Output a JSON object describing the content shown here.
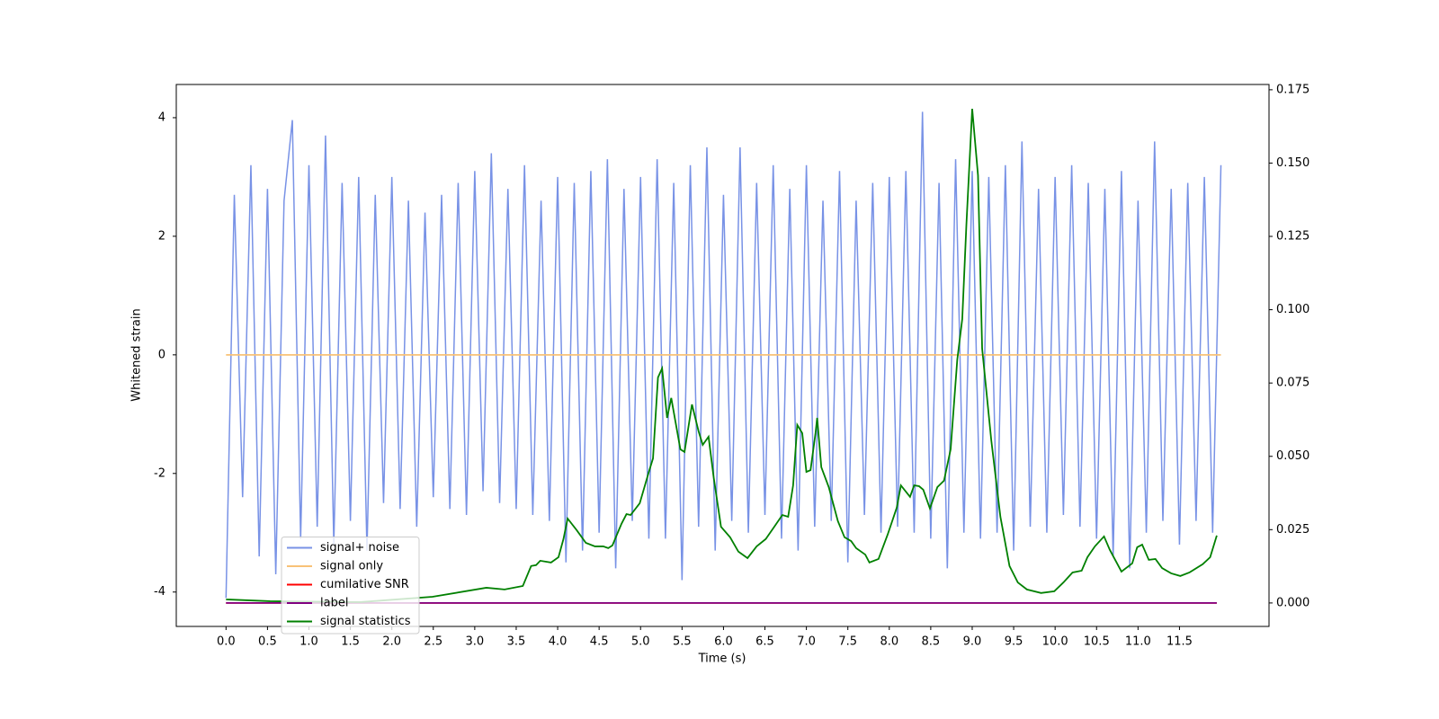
{
  "chart_data": {
    "type": "line",
    "x_label": "Time (s)",
    "y_label": "Whitened strain",
    "xlim": [
      -0.6,
      12.58
    ],
    "ylim": [
      -4.58,
      4.56
    ],
    "y2lim": [
      -0.008,
      0.1768
    ],
    "xticks": [
      {
        "value": 0,
        "label": "0.0"
      },
      0.5,
      {
        "value": 1,
        "label": "1.0"
      },
      1.5,
      {
        "value": 2,
        "label": "2.0"
      },
      2.5,
      {
        "value": 3,
        "label": "3.0"
      },
      3.5,
      {
        "value": 4,
        "label": "4.0"
      },
      4.5,
      {
        "value": 5,
        "label": "5.0"
      },
      5.5,
      {
        "value": 6,
        "label": "6.0"
      },
      6.5,
      {
        "value": 7,
        "label": "7.0"
      },
      7.5,
      {
        "value": 8,
        "label": "8.0"
      },
      8.5,
      {
        "value": 9,
        "label": "9.0"
      },
      9.5,
      {
        "value": 10,
        "label": "10.0"
      },
      10.5,
      {
        "value": 11,
        "label": "11.0"
      },
      11.5
    ],
    "yticks": [
      -4,
      -2,
      0,
      2,
      4
    ],
    "y2ticks": [
      {
        "value": 0,
        "label": "0.000"
      },
      0.025,
      {
        "value": 0.05,
        "label": "0.050"
      },
      0.075,
      {
        "value": 0.1,
        "label": "0.100"
      },
      0.125,
      {
        "value": 0.15,
        "label": "0.150"
      },
      0.175
    ],
    "legend": "lower left",
    "series": [
      {
        "name": "signal+ noise",
        "color": "#7892e6",
        "x": [
          0,
          0.1,
          0.2,
          0.3,
          0.4,
          0.5,
          0.6,
          0.7,
          0.8,
          0.9,
          1,
          1.1,
          1.2,
          1.3,
          1.4,
          1.5,
          1.6,
          1.7,
          1.8,
          1.9,
          2,
          2.1,
          2.2,
          2.3,
          2.4,
          2.5,
          2.6,
          2.7,
          2.8,
          2.9,
          3,
          3.1,
          3.2,
          3.3,
          3.4,
          3.5,
          3.6,
          3.7,
          3.8,
          3.9,
          4,
          4.1,
          4.2,
          4.3,
          4.4,
          4.5,
          4.6,
          4.7,
          4.8,
          4.9,
          5,
          5.1,
          5.2,
          5.3,
          5.4,
          5.5,
          5.6,
          5.7,
          5.8,
          5.9,
          6,
          6.1,
          6.2,
          6.3,
          6.4,
          6.5,
          6.6,
          6.7,
          6.8,
          6.9,
          7,
          7.1,
          7.2,
          7.3,
          7.4,
          7.5,
          7.6,
          7.7,
          7.8,
          7.9,
          8,
          8.1,
          8.2,
          8.3,
          8.4,
          8.5,
          8.6,
          8.7,
          8.8,
          8.9,
          9,
          9.1,
          9.2,
          9.3,
          9.4,
          9.5,
          9.6,
          9.7,
          9.8,
          9.9,
          10,
          10.1,
          10.2,
          10.3,
          10.4,
          10.5,
          10.6,
          10.7,
          10.8,
          10.9,
          11,
          11.1,
          11.2,
          11.3,
          11.4,
          11.5,
          11.6,
          11.7,
          11.8,
          11.9,
          12
        ],
        "values": [
          -4.1,
          2.7,
          -2.4,
          3.2,
          -3.4,
          2.8,
          -3.7,
          2.6,
          3.96,
          -3.1,
          3.2,
          -2.9,
          3.7,
          -3.2,
          2.9,
          -2.8,
          3.0,
          -3.3,
          2.7,
          -2.5,
          3.0,
          -2.6,
          2.6,
          -2.9,
          2.4,
          -2.4,
          2.7,
          -2.6,
          2.9,
          -2.7,
          3.1,
          -2.3,
          3.4,
          -2.5,
          2.8,
          -2.6,
          3.2,
          -2.7,
          2.6,
          -2.8,
          3.0,
          -3.5,
          2.9,
          -3.3,
          3.1,
          -3.0,
          3.3,
          -3.6,
          2.8,
          -2.8,
          3.0,
          -3.1,
          3.3,
          -3.1,
          2.9,
          -3.8,
          3.2,
          -2.9,
          3.5,
          -3.3,
          2.7,
          -2.8,
          3.5,
          -3.0,
          2.9,
          -2.7,
          3.2,
          -3.1,
          2.8,
          -3.3,
          3.2,
          -2.9,
          2.6,
          -2.8,
          3.1,
          -3.5,
          2.6,
          -2.7,
          2.9,
          -3.0,
          3.0,
          -2.9,
          3.1,
          -3.0,
          4.1,
          -3.1,
          2.9,
          -3.6,
          3.3,
          -3.0,
          3.1,
          -3.1,
          3.0,
          -3.0,
          3.2,
          -3.3,
          3.6,
          -2.9,
          2.8,
          -3.0,
          3.0,
          -2.7,
          3.2,
          -2.9,
          2.9,
          -3.1,
          2.8,
          -3.4,
          3.1,
          -3.6,
          2.6,
          -3.0,
          3.6,
          -2.8,
          2.8,
          -3.2,
          2.9,
          -2.8,
          3.0,
          -3.0,
          3.2
        ]
      },
      {
        "name": "signal only",
        "color": "#f8c277",
        "x": [
          0,
          12
        ],
        "values": [
          0,
          0
        ]
      },
      {
        "name": "cumilative SNR",
        "color": "#ff0000",
        "axis": "y2",
        "x": [
          0,
          11.95
        ],
        "values": [
          0,
          0
        ]
      },
      {
        "name": "label",
        "color": "#800080",
        "axis": "y2",
        "x": [
          0,
          11.95
        ],
        "values": [
          0,
          0
        ]
      },
      {
        "name": "signal statistics",
        "color": "#008000",
        "axis": "y2",
        "x": [
          0,
          0.53,
          1.62,
          2.49,
          3.14,
          3.36,
          3.58,
          3.68,
          3.74,
          3.79,
          3.92,
          4.01,
          4.07,
          4.12,
          4.23,
          4.34,
          4.45,
          4.55,
          4.61,
          4.66,
          4.77,
          4.83,
          4.88,
          4.99,
          5.1,
          5.15,
          5.21,
          5.26,
          5.32,
          5.37,
          5.48,
          5.53,
          5.62,
          5.7,
          5.75,
          5.82,
          5.88,
          5.97,
          6.08,
          6.18,
          6.29,
          6.4,
          6.51,
          6.62,
          6.71,
          6.78,
          6.84,
          6.89,
          6.95,
          7,
          7.05,
          7.11,
          7.13,
          7.18,
          7.27,
          7.38,
          7.46,
          7.54,
          7.6,
          7.71,
          7.76,
          7.87,
          7.98,
          8.09,
          8.14,
          8.25,
          8.3,
          8.36,
          8.41,
          8.49,
          8.58,
          8.66,
          8.74,
          8.82,
          8.88,
          8.93,
          9,
          9.07,
          9.12,
          9.23,
          9.34,
          9.45,
          9.55,
          9.66,
          9.83,
          9.99,
          10.1,
          10.21,
          10.32,
          10.39,
          10.48,
          10.59,
          10.66,
          10.8,
          10.93,
          10.99,
          11.05,
          11.13,
          11.21,
          11.29,
          11.4,
          11.51,
          11.62,
          11.78,
          11.87,
          11.95
        ],
        "values": [
          0.0012,
          0.0006,
          0.0003,
          0.0021,
          0.0052,
          0.0046,
          0.0058,
          0.0126,
          0.0129,
          0.0144,
          0.0138,
          0.0156,
          0.0218,
          0.0288,
          0.0248,
          0.0205,
          0.0193,
          0.0193,
          0.0187,
          0.0196,
          0.027,
          0.0303,
          0.03,
          0.034,
          0.0447,
          0.0493,
          0.0769,
          0.08,
          0.0631,
          0.0699,
          0.0524,
          0.0515,
          0.0677,
          0.0585,
          0.0539,
          0.0567,
          0.0432,
          0.026,
          0.0224,
          0.0175,
          0.0153,
          0.0193,
          0.0218,
          0.0263,
          0.03,
          0.0294,
          0.0401,
          0.0607,
          0.0579,
          0.0447,
          0.0453,
          0.0579,
          0.0631,
          0.0463,
          0.0395,
          0.0279,
          0.0224,
          0.0211,
          0.0187,
          0.0165,
          0.0138,
          0.015,
          0.0233,
          0.0325,
          0.0401,
          0.0362,
          0.0401,
          0.0398,
          0.0386,
          0.0322,
          0.0395,
          0.0417,
          0.0524,
          0.083,
          0.0968,
          0.129,
          0.1685,
          0.1458,
          0.0867,
          0.0555,
          0.0294,
          0.0126,
          0.007,
          0.0046,
          0.0034,
          0.004,
          0.007,
          0.0104,
          0.011,
          0.0156,
          0.0193,
          0.0227,
          0.0181,
          0.0107,
          0.0135,
          0.019,
          0.0199,
          0.0147,
          0.015,
          0.0119,
          0.0101,
          0.0092,
          0.0104,
          0.0132,
          0.0156,
          0.023
        ]
      }
    ]
  }
}
